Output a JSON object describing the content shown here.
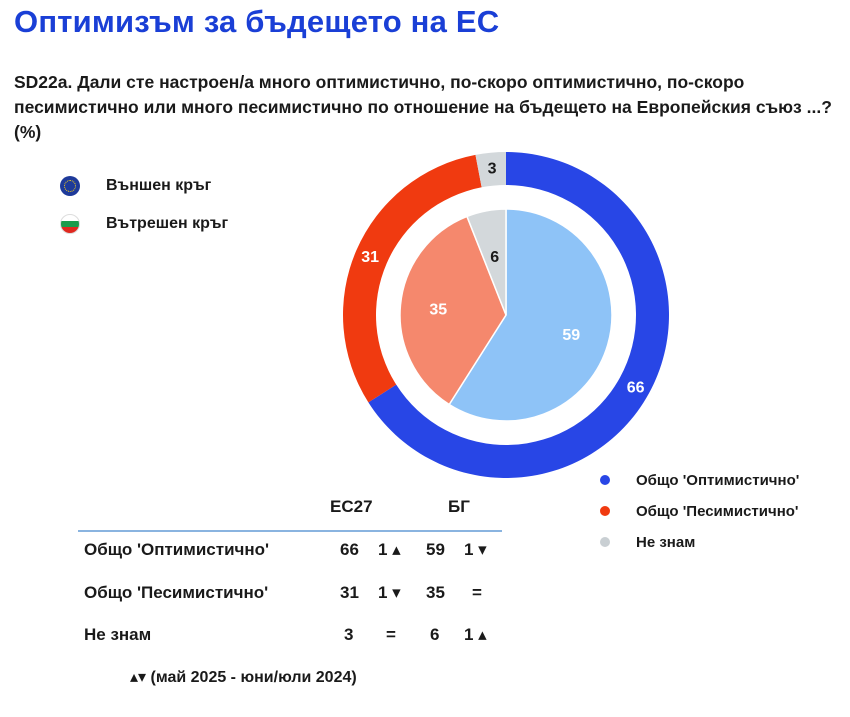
{
  "title": "Оптимизъм за бъдещето на ЕС",
  "question": "SD22a. Дали сте настроен/а много оптимистично, по-скоро оптимистично, по-скоро песимистично или много песимистично по отношение на бъдещето на Европейския съюз ...? (%)",
  "ring_legend": [
    {
      "label": "Външен кръг",
      "icon": "eu-flag-icon"
    },
    {
      "label": "Вътрешен кръг",
      "icon": "bulgaria-flag-icon"
    }
  ],
  "chart_data": {
    "type": "pie",
    "categories": [
      "Общо 'Оптимистично'",
      "Общо 'Песимистично'",
      "Не знам"
    ],
    "series": [
      {
        "ring": "outer",
        "values": [
          66,
          31,
          3
        ],
        "colors": [
          "#2846e6",
          "#f03a10",
          "#d3d8db"
        ]
      },
      {
        "ring": "inner",
        "values": [
          59,
          35,
          6
        ],
        "colors": [
          "#8ec3f7",
          "#f5886d",
          "#d3d8db"
        ]
      }
    ],
    "legend_position": "bottom-right"
  },
  "category_legend": [
    {
      "label": "Общо 'Оптимистично'",
      "color": "#2846e6"
    },
    {
      "label": "Общо 'Песимистично'",
      "color": "#f03a10"
    },
    {
      "label": "Не знам",
      "color": "#c9cfd3"
    }
  ],
  "table": {
    "headers": [
      "ЕС27",
      "БГ"
    ],
    "rows": [
      {
        "label": "Общо 'Оптимистично'",
        "eu": "66",
        "eu_change": "1 ▴",
        "bg": "59",
        "bg_change": "1 ▾"
      },
      {
        "label": "Общо 'Песимистично'",
        "eu": "31",
        "eu_change": "1 ▾",
        "bg": "35",
        "bg_change": "="
      },
      {
        "label": "Не знам",
        "eu": "3",
        "eu_change": "=",
        "bg": "6",
        "bg_change": "1 ▴"
      }
    ]
  },
  "note": "▴▾ (май 2025 - юни/юли 2024)"
}
